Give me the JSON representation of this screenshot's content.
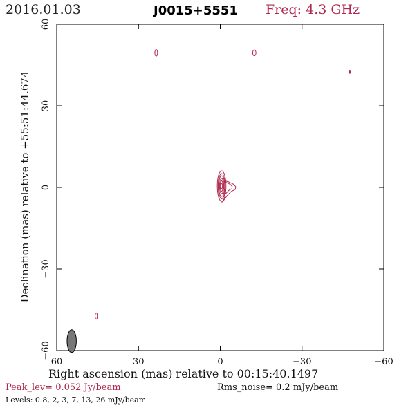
{
  "header": {
    "date": "2016.01.03",
    "source": "J0015+5551",
    "freq": "Freq: 4.3 GHz"
  },
  "footer": {
    "peak": "Peak_lev=  0.052 Jy/beam",
    "rms": "Rms_noise=   0.2 mJy/beam",
    "levels": "Levels: 0.8,    2,    3,    7,   13,   26 mJy/beam"
  },
  "colors": {
    "contour": "#b0284e",
    "beam": "#777777",
    "axis": "#000000"
  },
  "chart_data": {
    "type": "contour",
    "title": "J0015+5551",
    "xlabel": "Right ascension (mas) relative to 00:15:40.1497",
    "ylabel": "Declination (mas) relative to +55:51:44.674",
    "xlim": [
      60,
      -60
    ],
    "ylim": [
      -60,
      60
    ],
    "xticks": [
      60,
      30,
      0,
      -30,
      -60
    ],
    "yticks": [
      -60,
      -30,
      0,
      30,
      60
    ],
    "xtick_labels": [
      "60",
      "30",
      "0",
      "−30",
      "−60"
    ],
    "ytick_labels": [
      "−60",
      "−30",
      "0",
      "30",
      "60"
    ],
    "levels_mJy": [
      0.8,
      2,
      3,
      7,
      13,
      26
    ],
    "peak_Jy_per_beam": 0.052,
    "rms_mJy_per_beam": 0.2,
    "core": {
      "x": -0.5,
      "y": 0.5,
      "contours": [
        {
          "level": 0.8,
          "half_width": 1.6,
          "half_height": 5.6
        },
        {
          "level": 2,
          "half_width": 1.3,
          "half_height": 4.6
        },
        {
          "level": 3,
          "half_width": 1.1,
          "half_height": 3.8
        },
        {
          "level": 7,
          "half_width": 0.8,
          "half_height": 2.8
        },
        {
          "level": 13,
          "half_width": 0.55,
          "half_height": 1.9
        },
        {
          "level": 26,
          "half_width": 0.3,
          "half_height": 1.0
        }
      ],
      "jet_outline_x": [
        -0.8,
        -2.5,
        -4.5,
        -5.2,
        -5.0,
        -3.5,
        -2.0,
        -0.8,
        0.0
      ],
      "jet_outline_y": [
        2.0,
        1.6,
        0.6,
        -0.3,
        -1.2,
        -2.0,
        -3.5,
        -5.2,
        -6.0
      ]
    },
    "noise_blobs": [
      {
        "x": 23.5,
        "y": 49.5,
        "half_width": 0.5,
        "half_height": 1.2
      },
      {
        "x": -12.5,
        "y": 49.5,
        "half_width": 0.6,
        "half_height": 1.1
      },
      {
        "x": -47.5,
        "y": 42.5,
        "half_width": 0.25,
        "half_height": 0.6
      },
      {
        "x": 45.5,
        "y": -47.3,
        "half_width": 0.4,
        "half_height": 1.2
      }
    ],
    "beam": {
      "x": 54.5,
      "y": -56.5,
      "major": 4.2,
      "minor": 1.7,
      "pa_deg": 0
    }
  }
}
